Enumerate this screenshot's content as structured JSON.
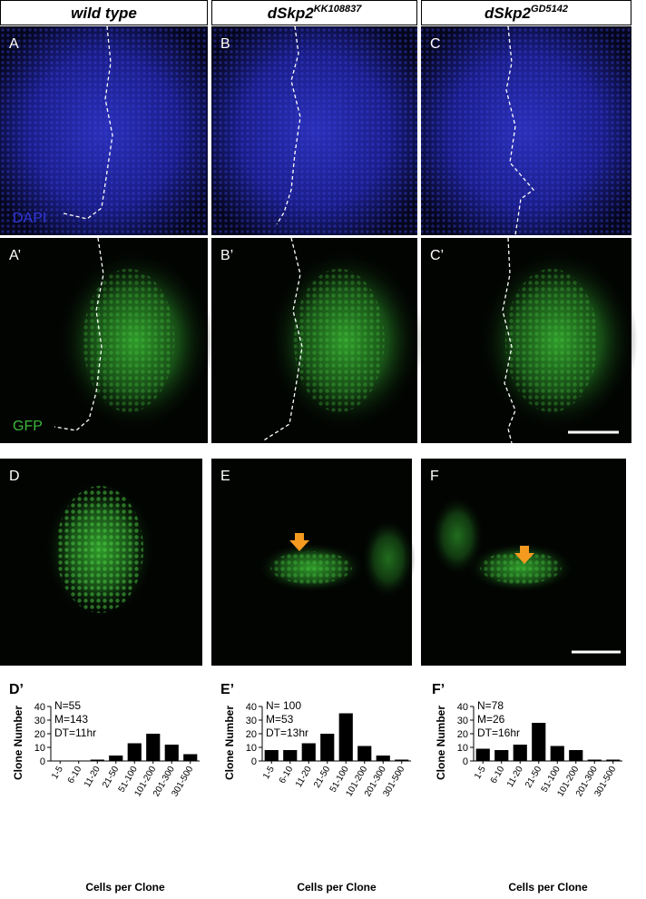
{
  "header": {
    "columns": [
      {
        "base": "wild type"
      },
      {
        "base": "dSkp2",
        "sup": "KK108837"
      },
      {
        "base": "dSkp2",
        "sup": "GD5142"
      }
    ]
  },
  "image_rows": [
    {
      "labels": [
        "A",
        "B",
        "C"
      ],
      "stain": "DAPI"
    },
    {
      "labels": [
        "A’",
        "B’",
        "C’"
      ],
      "stain": "GFP"
    },
    {
      "labels": [
        "D",
        "E",
        "F"
      ]
    }
  ],
  "chart_data": [
    {
      "type": "bar",
      "label": "D’",
      "annotations": [
        "N=55",
        "M=143",
        "DT=11hr"
      ],
      "x_label": "Cells per Clone",
      "y_label": "Clone Number",
      "categories": [
        "1-5",
        "6-10",
        "11-20",
        "21-50",
        "51-100",
        "101-200",
        "201-300",
        "301-500"
      ],
      "values": [
        0,
        0,
        1,
        4,
        13,
        20,
        12,
        5
      ],
      "color": "#000000",
      "ylim": [
        0,
        40
      ],
      "yticks": [
        0,
        10,
        20,
        30,
        40
      ]
    },
    {
      "type": "bar",
      "label": "E’",
      "annotations": [
        "N= 100",
        "M=53",
        "DT=13hr"
      ],
      "x_label": "Cells per Clone",
      "y_label": "Clone Number",
      "categories": [
        "1-5",
        "6-10",
        "11-20",
        "21-50",
        "51-100",
        "101-200",
        "201-300",
        "301-500"
      ],
      "values": [
        8,
        8,
        13,
        20,
        35,
        11,
        4,
        1
      ],
      "color": "#000000",
      "ylim": [
        0,
        40
      ],
      "yticks": [
        0,
        10,
        20,
        30,
        40
      ]
    },
    {
      "type": "bar",
      "label": "F’",
      "annotations": [
        "N=78",
        "M=26",
        "DT=16hr"
      ],
      "x_label": "Cells per Clone",
      "y_label": "Clone Number",
      "categories": [
        "1-5",
        "6-10",
        "11-20",
        "21-50",
        "51-100",
        "101-200",
        "201-300",
        "301-500"
      ],
      "values": [
        9,
        8,
        12,
        28,
        11,
        8,
        1,
        1
      ],
      "color": "#000000",
      "ylim": [
        0,
        40
      ],
      "yticks": [
        0,
        10,
        20,
        30,
        40
      ]
    }
  ]
}
